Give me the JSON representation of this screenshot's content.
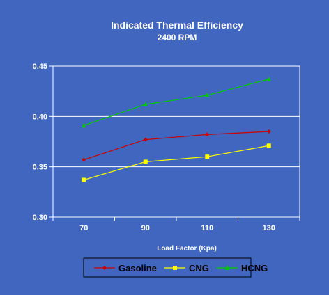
{
  "chart_data": {
    "type": "line",
    "title": "Indicated Thermal Efficiency",
    "subtitle": "2400 RPM",
    "xlabel": "Load Factor (Kpa)",
    "ylabel": "",
    "categories": [
      "70",
      "90",
      "110",
      "130"
    ],
    "ylim": [
      0.3,
      0.45
    ],
    "yticks": [
      "0.30",
      "0.35",
      "0.40",
      "0.45"
    ],
    "grid": true,
    "legend_position": "bottom",
    "series": [
      {
        "name": "Gasoline",
        "values": [
          0.357,
          0.377,
          0.382,
          0.385
        ],
        "color": "#cc0000",
        "marker": "diamond"
      },
      {
        "name": "CNG",
        "values": [
          0.337,
          0.355,
          0.36,
          0.371
        ],
        "color": "#ffff00",
        "marker": "square"
      },
      {
        "name": "HCNG",
        "values": [
          0.391,
          0.412,
          0.421,
          0.437
        ],
        "color": "#00cc00",
        "marker": "triangle"
      }
    ]
  },
  "colors": {
    "background": "#4166c0",
    "text": "#ffffff",
    "gridline": "#ffffff"
  }
}
